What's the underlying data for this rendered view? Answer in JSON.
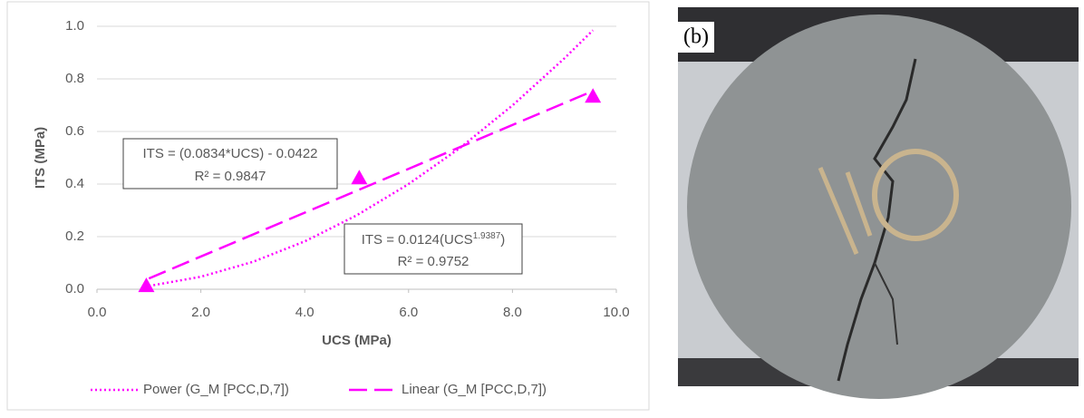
{
  "chart_data": {
    "type": "scatter",
    "xlabel": "UCS (MPa)",
    "ylabel": "ITS (MPa)",
    "xlim": [
      0,
      10
    ],
    "ylim": [
      0,
      1
    ],
    "xticks": [
      {
        "value": 0,
        "label": "0.0"
      },
      {
        "value": 2,
        "label": "2.0"
      },
      {
        "value": 4,
        "label": "4.0"
      },
      {
        "value": 6,
        "label": "6.0"
      },
      {
        "value": 8,
        "label": "8.0"
      },
      {
        "value": 10,
        "label": "10.0"
      }
    ],
    "yticks": [
      {
        "value": 0,
        "label": "0.0"
      },
      {
        "value": 0.2,
        "label": "0.2"
      },
      {
        "value": 0.4,
        "label": "0.4"
      },
      {
        "value": 0.6,
        "label": "0.6"
      },
      {
        "value": 0.8,
        "label": "0.8"
      },
      {
        "value": 1,
        "label": "1.0"
      }
    ],
    "grid": true,
    "series": [
      {
        "kind": "markers",
        "color": "#ff00ff",
        "x": [
          0.95,
          5.05,
          9.55
        ],
        "values": [
          0.01,
          0.42,
          0.73
        ]
      },
      {
        "kind": "line",
        "style": "dotted",
        "name": "Power (G_M [PCC,D,7])",
        "color": "#ff00ff",
        "x": [
          1,
          2,
          3,
          4,
          5,
          6,
          7,
          8,
          9,
          9.55
        ],
        "values": [
          0.0124,
          0.0475,
          0.104,
          0.182,
          0.281,
          0.4,
          0.539,
          0.699,
          0.878,
          0.985
        ]
      },
      {
        "kind": "line",
        "style": "dashed",
        "name": "Linear (G_M [PCC,D,7])",
        "color": "#ff00ff",
        "x": [
          1,
          9.55
        ],
        "values": [
          0.041,
          0.754
        ]
      }
    ],
    "annotations": {
      "linear": {
        "equation": "ITS = (0.0834*UCS) - 0.0422",
        "r2": "R² = 0.9847"
      },
      "power": {
        "equation": "ITS = 0.0124(UCS",
        "exponent": "1.9387",
        "close": ")",
        "r2": "R² = 0.9752"
      }
    }
  },
  "photo": {
    "label": "(b)"
  }
}
